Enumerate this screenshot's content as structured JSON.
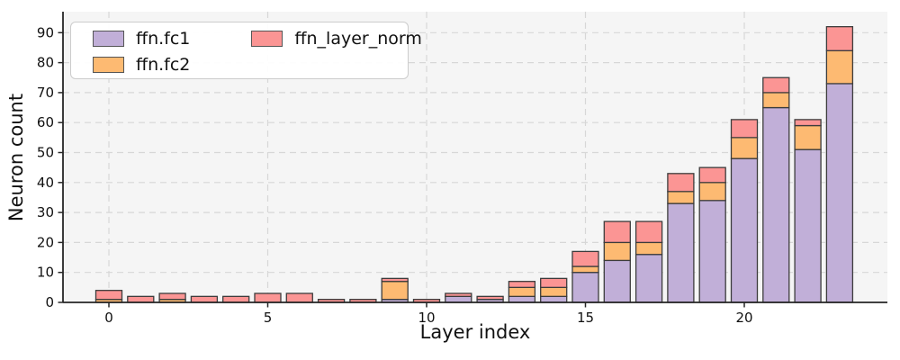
{
  "chart_data": {
    "type": "bar",
    "stacked": true,
    "title": "",
    "xlabel": "Layer index",
    "ylabel": "Neuron count",
    "x": [
      0,
      1,
      2,
      3,
      4,
      5,
      6,
      7,
      8,
      9,
      10,
      11,
      12,
      13,
      14,
      15,
      16,
      17,
      18,
      19,
      20,
      21,
      22,
      23
    ],
    "series": [
      {
        "name": "ffn.fc1",
        "color": "#c1afd8",
        "values": [
          0,
          0,
          0,
          0,
          0,
          0,
          0,
          0,
          0,
          1,
          0,
          2,
          1,
          2,
          2,
          10,
          14,
          16,
          33,
          34,
          48,
          65,
          51,
          73
        ]
      },
      {
        "name": "ffn.fc2",
        "color": "#fdba72",
        "values": [
          1,
          0,
          1,
          0,
          0,
          0,
          0,
          0,
          0,
          6,
          0,
          0,
          0,
          3,
          3,
          2,
          6,
          4,
          4,
          6,
          7,
          5,
          8,
          11
        ]
      },
      {
        "name": "ffn_layer_norm",
        "color": "#fb9594",
        "values": [
          3,
          2,
          2,
          2,
          2,
          3,
          3,
          1,
          1,
          1,
          1,
          1,
          1,
          2,
          3,
          5,
          7,
          7,
          6,
          5,
          6,
          5,
          2,
          8
        ]
      }
    ],
    "totals": [
      4,
      2,
      3,
      2,
      2,
      3,
      3,
      1,
      1,
      8,
      1,
      3,
      2,
      7,
      8,
      17,
      27,
      27,
      43,
      45,
      61,
      75,
      61,
      92
    ],
    "yticks": [
      0,
      10,
      20,
      30,
      40,
      50,
      60,
      70,
      80,
      90
    ],
    "xticks": [
      0,
      5,
      10,
      15,
      20
    ],
    "ylim": [
      0,
      97
    ],
    "grid": true,
    "legend_position": "upper left",
    "colors": {
      "bar_edge": "#3c3c3c",
      "grid": "#d7d7d7",
      "spine": "#262626",
      "plot_bg": "#f5f5f5",
      "text": "#111111"
    }
  }
}
